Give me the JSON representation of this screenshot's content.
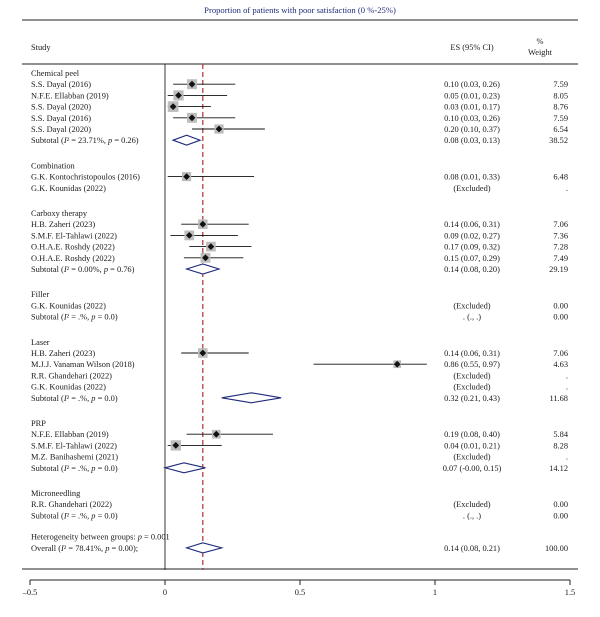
{
  "chart_data": {
    "type": "forest",
    "title": "Proportion of patients with poor satisfaction (0 %-25%)",
    "columns": {
      "study": "Study",
      "es": "ES (95% CI)",
      "weight_line1": "%",
      "weight_line2": "Weight"
    },
    "overall_line": 0.14,
    "xlim": [
      -0.5,
      1.5
    ],
    "ticks": [
      {
        "value": -0.5,
        "label": "–0.5"
      },
      {
        "value": 0,
        "label": "0"
      },
      {
        "value": 0.5,
        "label": "0.5"
      },
      {
        "value": 1,
        "label": "1"
      },
      {
        "value": 1.5,
        "label": "1.5"
      }
    ],
    "groups": [
      {
        "name": "Chemical peel",
        "studies": [
          {
            "label": "S.S. Dayal (2016)",
            "es": 0.1,
            "lo": 0.03,
            "hi": 0.26,
            "es_text": "0.10 (0.03, 0.26)",
            "weight": "7.59"
          },
          {
            "label": "N.F.E. Ellabban (2019)",
            "es": 0.05,
            "lo": 0.01,
            "hi": 0.23,
            "es_text": "0.05 (0.01, 0.23)",
            "weight": "8.05"
          },
          {
            "label": "S.S. Dayal (2020)",
            "es": 0.03,
            "lo": 0.01,
            "hi": 0.17,
            "es_text": "0.03 (0.01, 0.17)",
            "weight": "8.76"
          },
          {
            "label": "S.S. Dayal (2016)",
            "es": 0.1,
            "lo": 0.03,
            "hi": 0.26,
            "es_text": "0.10 (0.03, 0.26)",
            "weight": "7.59"
          },
          {
            "label": "S.S. Dayal (2020)",
            "es": 0.2,
            "lo": 0.1,
            "hi": 0.37,
            "es_text": "0.20 (0.10, 0.37)",
            "weight": "6.54"
          }
        ],
        "subtotal": {
          "label_pre": "Subtotal (",
          "label_i2": "I² = 23.71%, ",
          "label_p": "p",
          "label_post": " = 0.26)",
          "es": 0.08,
          "lo": 0.03,
          "hi": 0.13,
          "es_text": "0.08 (0.03, 0.13)",
          "weight": "38.52"
        }
      },
      {
        "name": "Combination",
        "studies": [
          {
            "label": "G.K. Kontochristopoulos (2016)",
            "es": 0.08,
            "lo": 0.01,
            "hi": 0.33,
            "es_text": "0.08 (0.01, 0.33)",
            "weight": "6.48"
          },
          {
            "label": "G.K. Kounidas (2022)",
            "es": null,
            "es_text": "(Excluded)",
            "weight": "."
          }
        ],
        "subtotal": null
      },
      {
        "name": "Carboxy therapy",
        "studies": [
          {
            "label": "H.B. Zaheri (2023)",
            "es": 0.14,
            "lo": 0.06,
            "hi": 0.31,
            "es_text": "0.14 (0.06, 0.31)",
            "weight": "7.06"
          },
          {
            "label": "S.M.F. El-Tahlawi (2022)",
            "es": 0.09,
            "lo": 0.02,
            "hi": 0.27,
            "es_text": "0.09 (0.02, 0.27)",
            "weight": "7.36"
          },
          {
            "label": "O.H.A.E. Roshdy (2022)",
            "es": 0.17,
            "lo": 0.09,
            "hi": 0.32,
            "es_text": "0.17 (0.09, 0.32)",
            "weight": "7.28"
          },
          {
            "label": "O.H.A.E. Roshdy (2022)",
            "es": 0.15,
            "lo": 0.07,
            "hi": 0.29,
            "es_text": "0.15 (0.07, 0.29)",
            "weight": "7.49"
          }
        ],
        "subtotal": {
          "label_pre": "Subtotal (",
          "label_i2": "I² = 0.00%, ",
          "label_p": "p",
          "label_post": " = 0.76)",
          "es": 0.14,
          "lo": 0.08,
          "hi": 0.2,
          "es_text": "0.14 (0.08, 0.20)",
          "weight": "29.19"
        }
      },
      {
        "name": "Filler",
        "studies": [
          {
            "label": "G.K. Kounidas (2022)",
            "es": null,
            "es_text": "(Excluded)",
            "weight": "0.00"
          }
        ],
        "subtotal": {
          "label_pre": "Subtotal (",
          "label_i2": "I² = .%, ",
          "label_p": "p",
          "label_post": " = 0.0)",
          "es": null,
          "es_text": ". (., .)",
          "weight": "0.00"
        }
      },
      {
        "name": "Laser",
        "studies": [
          {
            "label": "H.B. Zaheri (2023)",
            "es": 0.14,
            "lo": 0.06,
            "hi": 0.31,
            "es_text": "0.14 (0.06, 0.31)",
            "weight": "7.06"
          },
          {
            "label": "M.J.J. Vanaman Wilson (2018)",
            "es": 0.86,
            "lo": 0.55,
            "hi": 0.97,
            "es_text": "0.86 (0.55, 0.97)",
            "weight": "4.63"
          },
          {
            "label": "R.R. Ghandehari (2022)",
            "es": null,
            "es_text": "(Excluded)",
            "weight": "."
          },
          {
            "label": "G.K. Kounidas (2022)",
            "es": null,
            "es_text": "(Excluded)",
            "weight": "."
          }
        ],
        "subtotal": {
          "label_pre": "Subtotal (",
          "label_i2": "I² = .%, ",
          "label_p": "p",
          "label_post": " = 0.0)",
          "es": 0.32,
          "lo": 0.21,
          "hi": 0.43,
          "es_text": "0.32 (0.21, 0.43)",
          "weight": "11.68"
        }
      },
      {
        "name": "PRP",
        "studies": [
          {
            "label": "N.F.E. Ellabban (2019)",
            "es": 0.19,
            "lo": 0.08,
            "hi": 0.4,
            "es_text": "0.19 (0.08, 0.40)",
            "weight": "5.84"
          },
          {
            "label": "S.M.F. El-Tahlawi (2022)",
            "es": 0.04,
            "lo": 0.01,
            "hi": 0.21,
            "es_text": "0.04 (0.01, 0.21)",
            "weight": "8.28"
          },
          {
            "label": "M.Z. Banihashemi (2021)",
            "es": null,
            "es_text": "(Excluded)",
            "weight": "."
          }
        ],
        "subtotal": {
          "label_pre": "Subtotal (",
          "label_i2": "I² = .%, ",
          "label_p": "p",
          "label_post": " = 0.0)",
          "es": 0.07,
          "lo": -0.0,
          "hi": 0.15,
          "es_text": "0.07 (-0.00, 0.15)",
          "weight": "14.12"
        }
      },
      {
        "name": "Microneedling",
        "studies": [
          {
            "label": "R.R. Ghandehari (2022)",
            "es": null,
            "es_text": "(Excluded)",
            "weight": "0.00"
          }
        ],
        "subtotal": {
          "label_pre": "Subtotal (",
          "label_i2": "I² = .%, ",
          "label_p": "p",
          "label_post": " = 0.0)",
          "es": null,
          "es_text": ". (., .)",
          "weight": "0.00"
        }
      }
    ],
    "heterogeneity": {
      "label_pre": "Heterogeneity between groups: ",
      "label_p": "p",
      "label_post": " = 0.001"
    },
    "overall": {
      "label_pre": "Overall (",
      "label_i2": "I² = 78.41%, ",
      "label_p": "p",
      "label_post": " = 0.00);",
      "es": 0.14,
      "lo": 0.08,
      "hi": 0.21,
      "es_text": "0.14 (0.08, 0.21)",
      "weight": "100.00"
    },
    "colors": {
      "title": "#1f2a7a",
      "text": "#1a1a1a",
      "diamond": "#1f2a7a",
      "ref_line": "#b03030",
      "weight_box": "#bdbdbd",
      "point": "#111111"
    }
  }
}
